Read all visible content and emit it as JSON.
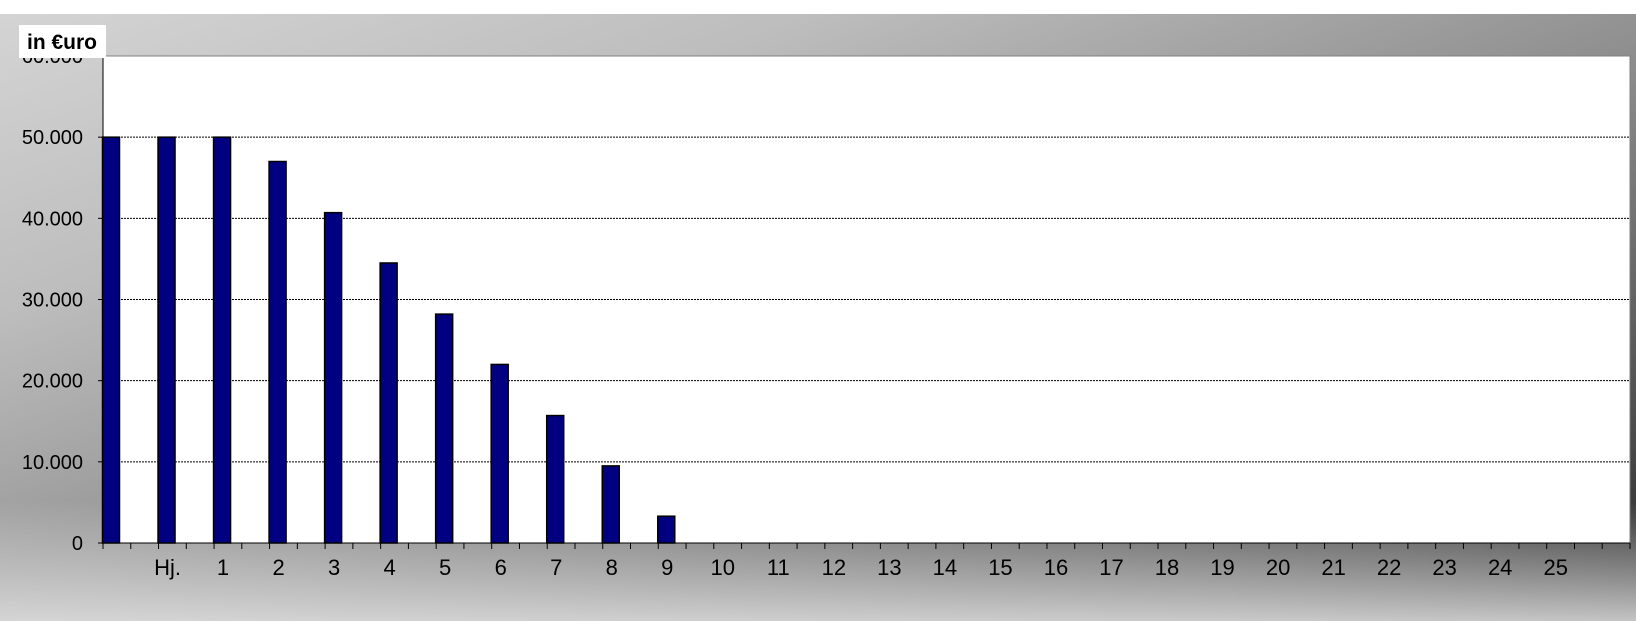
{
  "chart_data": {
    "type": "bar",
    "unit_label": "in €uro",
    "categories": [
      "",
      "Hj.",
      "1",
      "2",
      "3",
      "4",
      "5",
      "6",
      "7",
      "8",
      "9",
      "10",
      "11",
      "12",
      "13",
      "14",
      "15",
      "16",
      "17",
      "18",
      "19",
      "20",
      "21",
      "22",
      "23",
      "24",
      "25",
      ""
    ],
    "values": [
      50000,
      50000,
      50000,
      47000,
      40700,
      34500,
      28200,
      22000,
      15700,
      9500,
      3300,
      0,
      0,
      0,
      0,
      0,
      0,
      0,
      0,
      0,
      0,
      0,
      0,
      0,
      0,
      0,
      0,
      0
    ],
    "y_ticks": [
      "0",
      "10.000",
      "20.000",
      "30.000",
      "40.000",
      "50.000",
      "60.000"
    ],
    "ylim": [
      0,
      60000
    ],
    "grid": true,
    "colors": {
      "bar": "#000080",
      "bar_outline": "#000000",
      "plot_bg": "#ffffff"
    }
  }
}
